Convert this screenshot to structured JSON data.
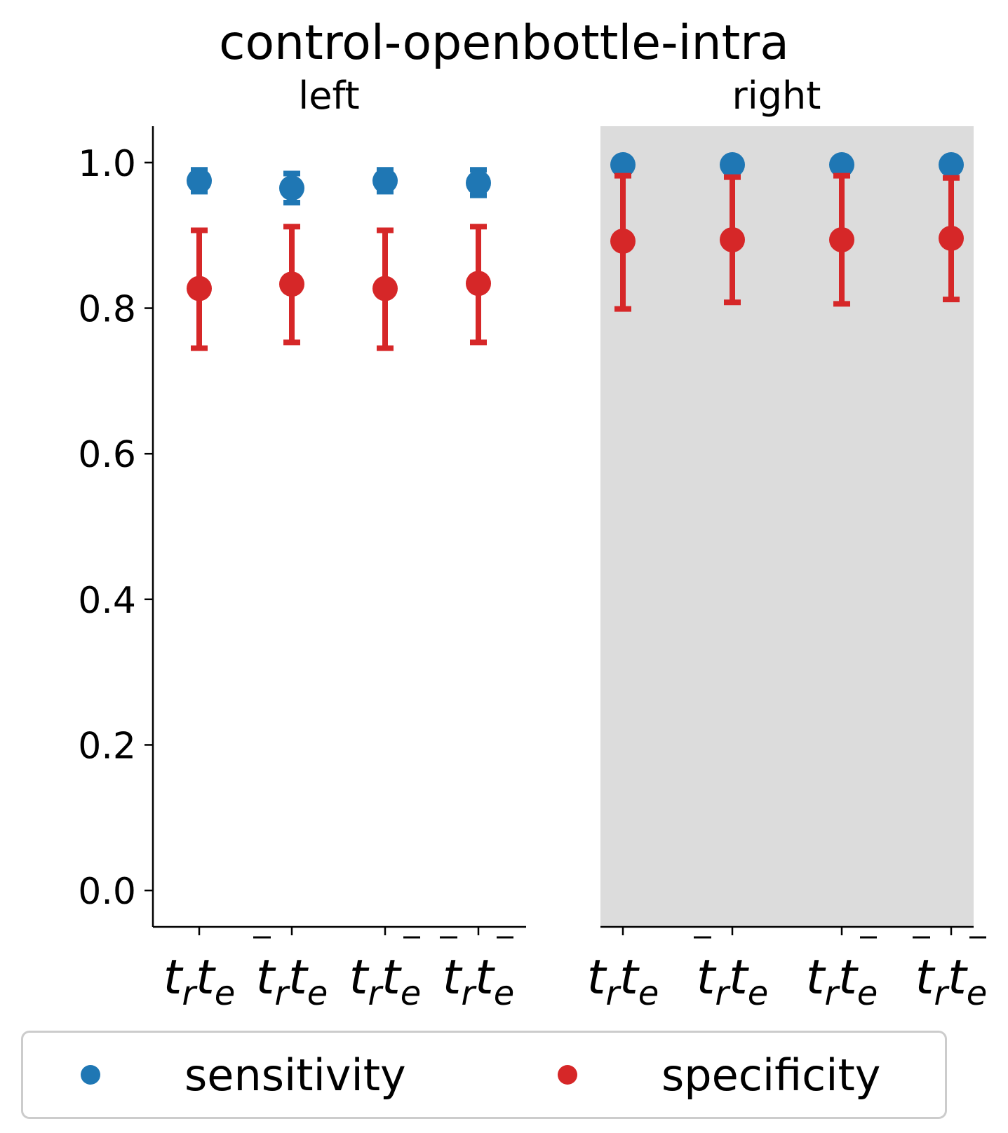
{
  "title": "control-openbottle-intra",
  "colors": {
    "sensitivity": "#1f77b4",
    "specificity": "#d62728",
    "shaded_panel": "#dcdcdc"
  },
  "chart_data": [
    {
      "type": "scatter",
      "panel": "left",
      "title": "left",
      "categories": [
        "t_r t_e",
        "t̄_r t_e",
        "t_r t̄_e",
        "t̄_r t̄_e"
      ],
      "ylim": [
        -0.05,
        1.05
      ],
      "yticks": [
        "0.0",
        "0.2",
        "0.4",
        "0.6",
        "0.8",
        "1.0"
      ],
      "shaded": false,
      "series": [
        {
          "name": "sensitivity",
          "values": [
            0.975,
            0.965,
            0.975,
            0.972
          ],
          "err_low": [
            0.96,
            0.945,
            0.96,
            0.955
          ],
          "err_high": [
            0.99,
            0.985,
            0.99,
            0.99
          ]
        },
        {
          "name": "specificity",
          "values": [
            0.827,
            0.833,
            0.827,
            0.834
          ],
          "err_low": [
            0.745,
            0.753,
            0.745,
            0.753
          ],
          "err_high": [
            0.907,
            0.912,
            0.907,
            0.912
          ]
        }
      ]
    },
    {
      "type": "scatter",
      "panel": "right",
      "title": "right",
      "categories": [
        "t_r t_e",
        "t̄_r t_e",
        "t_r t̄_e",
        "t̄_r t̄_e"
      ],
      "ylim": [
        -0.05,
        1.05
      ],
      "shaded": true,
      "series": [
        {
          "name": "sensitivity",
          "values": [
            0.997,
            0.997,
            0.997,
            0.997
          ],
          "err_low": [
            0.997,
            0.997,
            0.997,
            0.997
          ],
          "err_high": [
            0.997,
            0.997,
            0.997,
            0.997
          ]
        },
        {
          "name": "specificity",
          "values": [
            0.892,
            0.894,
            0.894,
            0.896
          ],
          "err_low": [
            0.799,
            0.808,
            0.806,
            0.812
          ],
          "err_high": [
            0.982,
            0.98,
            0.982,
            0.979
          ]
        }
      ]
    }
  ],
  "legend": {
    "placement": "bottom",
    "items": [
      {
        "label": "sensitivity",
        "color": "#1f77b4"
      },
      {
        "label": "specificity",
        "color": "#d62728"
      }
    ]
  }
}
